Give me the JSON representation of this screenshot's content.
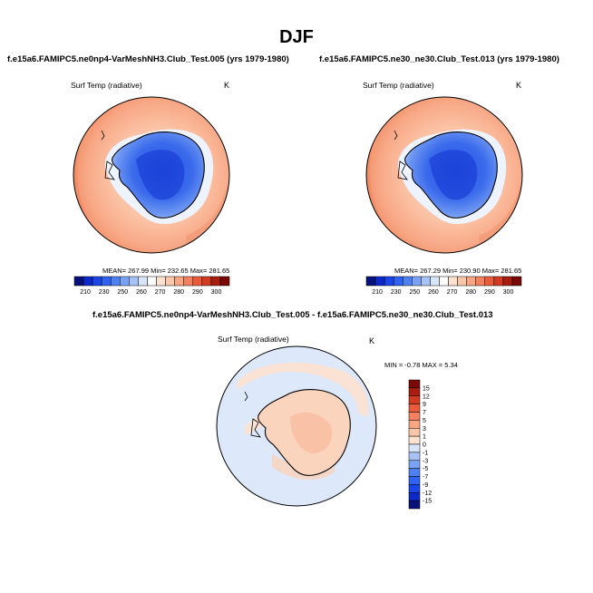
{
  "page": {
    "title": "DJF"
  },
  "panels": {
    "left": {
      "title": "f.e15a6.FAMIPC5.ne0np4-VarMeshNH3.Club_Test.005 (yrs 1979-1980)",
      "variable": "Surf Temp (radiative)",
      "units": "K",
      "stats": "MEAN= 267.99  Min= 232.65  Max= 281.65"
    },
    "right": {
      "title": "f.e15a6.FAMIPC5.ne30_ne30.Club_Test.013 (yrs 1979-1980)",
      "variable": "Surf Temp (radiative)",
      "units": "K",
      "stats": "MEAN= 267.29  Min= 230.90  Max= 281.65"
    },
    "diff": {
      "title": "f.e15a6.FAMIPC5.ne0np4-VarMeshNH3.Club_Test.005 - f.e15a6.FAMIPC5.ne30_ne30.Club_Test.013",
      "variable": "Surf Temp (radiative)",
      "units": "K",
      "stats": "MIN = -0.78 MAX =  5.34"
    }
  },
  "chart_data": [
    {
      "type": "heatmap",
      "projection": "polar-stereographic-south",
      "title": "f.e15a6.FAMIPC5.ne0np4-VarMeshNH3.Club_Test.005 (yrs 1979-1980)",
      "variable": "Surf Temp (radiative)",
      "units": "K",
      "mean": 267.99,
      "min": 232.65,
      "max": 281.65,
      "colorbar": {
        "orientation": "horizontal",
        "tick_labels": [
          "210",
          "230",
          "250",
          "260",
          "270",
          "280",
          "290",
          "300"
        ],
        "colors": [
          "#08107a",
          "#0d28c8",
          "#1a46e8",
          "#2f62f0",
          "#4f80f2",
          "#7aa2f4",
          "#a6c2f6",
          "#d8e6fa",
          "#ffffff",
          "#fde2d0",
          "#fbc6aa",
          "#f8a584",
          "#f3805e",
          "#ea5b3c",
          "#d23b22",
          "#a81d0e",
          "#7a0804"
        ]
      }
    },
    {
      "type": "heatmap",
      "projection": "polar-stereographic-south",
      "title": "f.e15a6.FAMIPC5.ne30_ne30.Club_Test.013 (yrs 1979-1980)",
      "variable": "Surf Temp (radiative)",
      "units": "K",
      "mean": 267.29,
      "min": 230.9,
      "max": 281.65,
      "colorbar": {
        "orientation": "horizontal",
        "tick_labels": [
          "210",
          "230",
          "250",
          "260",
          "270",
          "280",
          "290",
          "300"
        ],
        "colors": [
          "#08107a",
          "#0d28c8",
          "#1a46e8",
          "#2f62f0",
          "#4f80f2",
          "#7aa2f4",
          "#a6c2f6",
          "#d8e6fa",
          "#ffffff",
          "#fde2d0",
          "#fbc6aa",
          "#f8a584",
          "#f3805e",
          "#ea5b3c",
          "#d23b22",
          "#a81d0e",
          "#7a0804"
        ]
      }
    },
    {
      "type": "heatmap",
      "projection": "polar-stereographic-south",
      "title": "f.e15a6.FAMIPC5.ne0np4-VarMeshNH3.Club_Test.005 - f.e15a6.FAMIPC5.ne30_ne30.Club_Test.013",
      "variable": "Surf Temp (radiative)",
      "units": "K",
      "min": -0.78,
      "max": 5.34,
      "colorbar": {
        "orientation": "vertical",
        "tick_labels": [
          "15",
          "12",
          "9",
          "7",
          "5",
          "3",
          "1",
          "0",
          "-1",
          "-3",
          "-5",
          "-7",
          "-9",
          "-12",
          "-15"
        ],
        "colors": [
          "#7a0804",
          "#a81d0e",
          "#d23b22",
          "#ea5b3c",
          "#f3805e",
          "#f8a584",
          "#fbc6aa",
          "#fde2d0",
          "#d8e6fa",
          "#a6c2f6",
          "#7aa2f4",
          "#4f80f2",
          "#2f62f0",
          "#1a46e8",
          "#0d28c8",
          "#08107a"
        ]
      }
    }
  ]
}
